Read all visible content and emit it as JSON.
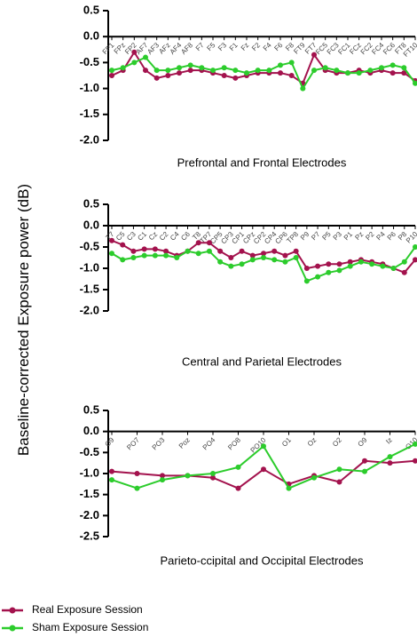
{
  "y_label": "Baseline-corrected Exposure power (dB)",
  "chart_data": [
    {
      "type": "line",
      "title": "Prefrontal and Frontal Electrodes",
      "categories": [
        "FP1",
        "FPz",
        "FP2",
        "AF7",
        "AF3",
        "AFz",
        "AF4",
        "AF8",
        "F7",
        "F5",
        "F3",
        "F1",
        "Fz",
        "F2",
        "F4",
        "F6",
        "F8",
        "FT9",
        "FT7",
        "FC5",
        "FC3",
        "FC1",
        "FCz",
        "FC2",
        "FC4",
        "FC6",
        "FT8",
        "FT10"
      ],
      "series": [
        {
          "name": "Real Exposure Session",
          "color": "#a3124d",
          "values": [
            -0.75,
            -0.65,
            -0.3,
            -0.65,
            -0.8,
            -0.75,
            -0.7,
            -0.65,
            -0.65,
            -0.7,
            -0.75,
            -0.8,
            -0.75,
            -0.7,
            -0.7,
            -0.7,
            -0.75,
            -0.9,
            -0.35,
            -0.65,
            -0.7,
            -0.7,
            -0.65,
            -0.7,
            -0.65,
            -0.7,
            -0.7,
            -0.85
          ]
        },
        {
          "name": "Sham Exposure Session",
          "color": "#2ccc2c",
          "values": [
            -0.65,
            -0.6,
            -0.5,
            -0.4,
            -0.65,
            -0.65,
            -0.6,
            -0.55,
            -0.6,
            -0.65,
            -0.6,
            -0.65,
            -0.7,
            -0.65,
            -0.65,
            -0.55,
            -0.5,
            -1.0,
            -0.65,
            -0.6,
            -0.65,
            -0.7,
            -0.7,
            -0.65,
            -0.6,
            -0.55,
            -0.6,
            -0.9
          ]
        }
      ],
      "ylim": [
        -2.0,
        0.5
      ],
      "yticks": [
        0.5,
        {
          "value": 0,
          "label": "0.0"
        },
        -0.5,
        {
          "value": -1,
          "label": "-1.0"
        },
        -1.5,
        {
          "value": -2,
          "label": "-2.0"
        }
      ]
    },
    {
      "type": "line",
      "title": "Central and Parietal Electrodes",
      "categories": [
        "T7",
        "C5",
        "C3",
        "C1",
        "Cz",
        "C2",
        "C4",
        "C6",
        "T8",
        "TP7",
        "CP5",
        "CP3",
        "CP1",
        "CPz",
        "CP2",
        "CP4",
        "CP6",
        "TP8",
        "P9",
        "P7",
        "P5",
        "P3",
        "P1",
        "Pz",
        "P2",
        "P4",
        "P6",
        "P8",
        "P10"
      ],
      "series": [
        {
          "name": "Real Exposure Session",
          "color": "#a3124d",
          "values": [
            -0.35,
            -0.45,
            -0.6,
            -0.55,
            -0.55,
            -0.6,
            -0.7,
            -0.6,
            -0.4,
            -0.4,
            -0.6,
            -0.75,
            -0.6,
            -0.7,
            -0.65,
            -0.6,
            -0.7,
            -0.6,
            -1.0,
            -0.95,
            -0.9,
            -0.9,
            -0.85,
            -0.8,
            -0.85,
            -0.9,
            -1.0,
            -1.1,
            -0.8
          ]
        },
        {
          "name": "Sham Exposure Session",
          "color": "#2ccc2c",
          "values": [
            -0.65,
            -0.8,
            -0.75,
            -0.7,
            -0.7,
            -0.7,
            -0.75,
            -0.6,
            -0.65,
            -0.6,
            -0.85,
            -0.95,
            -0.9,
            -0.8,
            -0.75,
            -0.8,
            -0.85,
            -0.75,
            -1.3,
            -1.2,
            -1.1,
            -1.05,
            -0.95,
            -0.85,
            -0.9,
            -0.95,
            -1.0,
            -0.85,
            -0.5
          ]
        }
      ],
      "ylim": [
        -2.0,
        0.5
      ],
      "yticks": [
        0.5,
        {
          "value": 0,
          "label": "0.0"
        },
        -0.5,
        {
          "value": -1,
          "label": "-1.0"
        },
        -1.5,
        {
          "value": -2,
          "label": "-2.0"
        }
      ]
    },
    {
      "type": "line",
      "title": "Parieto-ccipital and Occipital Electrodes",
      "categories": [
        "O9",
        "PO7",
        "PO3",
        "Poz",
        "PO4",
        "PO8",
        "PO10",
        "O1",
        "Oz",
        "O2",
        "O9",
        "Iz",
        "O10"
      ],
      "series": [
        {
          "name": "Real Exposure Session",
          "color": "#a3124d",
          "values": [
            -0.95,
            -1.0,
            -1.05,
            -1.05,
            -1.1,
            -1.35,
            -0.9,
            -1.25,
            -1.05,
            -1.2,
            -0.7,
            -0.75,
            -0.7
          ]
        },
        {
          "name": "Sham Exposure Session",
          "color": "#2ccc2c",
          "values": [
            -1.15,
            -1.35,
            -1.15,
            -1.05,
            -1.0,
            -0.85,
            -0.35,
            -1.35,
            -1.1,
            -0.9,
            -0.95,
            -0.6,
            -0.3
          ]
        }
      ],
      "ylim": [
        -2.5,
        0.5
      ],
      "yticks": [
        0.5,
        {
          "value": 0,
          "label": "0.0"
        },
        -0.5,
        {
          "value": -1,
          "label": "-1.0"
        },
        -1.5,
        {
          "value": -2,
          "label": "-2.0"
        },
        -2.5
      ]
    }
  ]
}
